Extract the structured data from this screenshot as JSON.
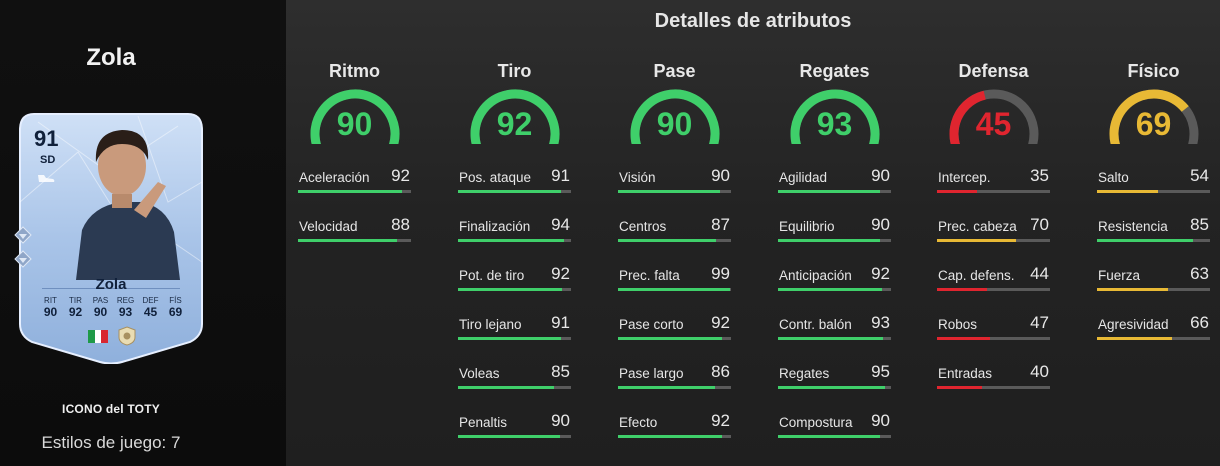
{
  "colors": {
    "green": "#3fcf6a",
    "red": "#e0252f",
    "yellow": "#e8b935",
    "track": "#5a5a5a"
  },
  "player": {
    "name": "Zola",
    "card_type": "ICONO del TOTY",
    "playstyles": "Estilos de juego: 7"
  },
  "card": {
    "rating": "91",
    "position": "SD",
    "name": "Zola",
    "stat_labels": [
      "RIT",
      "TIR",
      "PAS",
      "REG",
      "DEF",
      "FÍS"
    ],
    "stat_values": [
      "90",
      "92",
      "90",
      "93",
      "45",
      "69"
    ],
    "flag_colors": [
      "#1f9a48",
      "#ffffff",
      "#d8262f"
    ]
  },
  "section_title": "Detalles de atributos",
  "categories": [
    {
      "name": "Ritmo",
      "value": 90,
      "color": "#3fcf6a",
      "attributes": [
        {
          "name": "Aceleración",
          "value": 92
        },
        {
          "name": "Velocidad",
          "value": 88
        }
      ]
    },
    {
      "name": "Tiro",
      "value": 92,
      "color": "#3fcf6a",
      "attributes": [
        {
          "name": "Pos. ataque",
          "value": 91
        },
        {
          "name": "Finalización",
          "value": 94
        },
        {
          "name": "Pot. de tiro",
          "value": 92
        },
        {
          "name": "Tiro lejano",
          "value": 91
        },
        {
          "name": "Voleas",
          "value": 85
        },
        {
          "name": "Penaltis",
          "value": 90
        }
      ]
    },
    {
      "name": "Pase",
      "value": 90,
      "color": "#3fcf6a",
      "attributes": [
        {
          "name": "Visión",
          "value": 90
        },
        {
          "name": "Centros",
          "value": 87
        },
        {
          "name": "Prec. falta",
          "value": 99
        },
        {
          "name": "Pase corto",
          "value": 92
        },
        {
          "name": "Pase largo",
          "value": 86
        },
        {
          "name": "Efecto",
          "value": 92
        }
      ]
    },
    {
      "name": "Regates",
      "value": 93,
      "color": "#3fcf6a",
      "attributes": [
        {
          "name": "Agilidad",
          "value": 90
        },
        {
          "name": "Equilibrio",
          "value": 90
        },
        {
          "name": "Anticipación",
          "value": 92
        },
        {
          "name": "Contr. balón",
          "value": 93
        },
        {
          "name": "Regates",
          "value": 95
        },
        {
          "name": "Compostura",
          "value": 90
        }
      ]
    },
    {
      "name": "Defensa",
      "value": 45,
      "color": "#e0252f",
      "attributes": [
        {
          "name": "Intercep.",
          "value": 35
        },
        {
          "name": "Prec. cabeza",
          "value": 70
        },
        {
          "name": "Cap. defens.",
          "value": 44
        },
        {
          "name": "Robos",
          "value": 47
        },
        {
          "name": "Entradas",
          "value": 40
        }
      ]
    },
    {
      "name": "Físico",
      "value": 69,
      "color": "#e8b935",
      "attributes": [
        {
          "name": "Salto",
          "value": 54
        },
        {
          "name": "Resistencia",
          "value": 85
        },
        {
          "name": "Fuerza",
          "value": 63
        },
        {
          "name": "Agresividad",
          "value": 66
        }
      ]
    }
  ]
}
